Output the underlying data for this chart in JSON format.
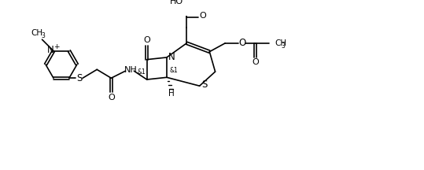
{
  "bg": "#ffffff",
  "lc": "#000000",
  "fig_w": 5.39,
  "fig_h": 2.16,
  "dpi": 100,
  "xlim": [
    0,
    539
  ],
  "ylim": [
    0,
    216
  ]
}
